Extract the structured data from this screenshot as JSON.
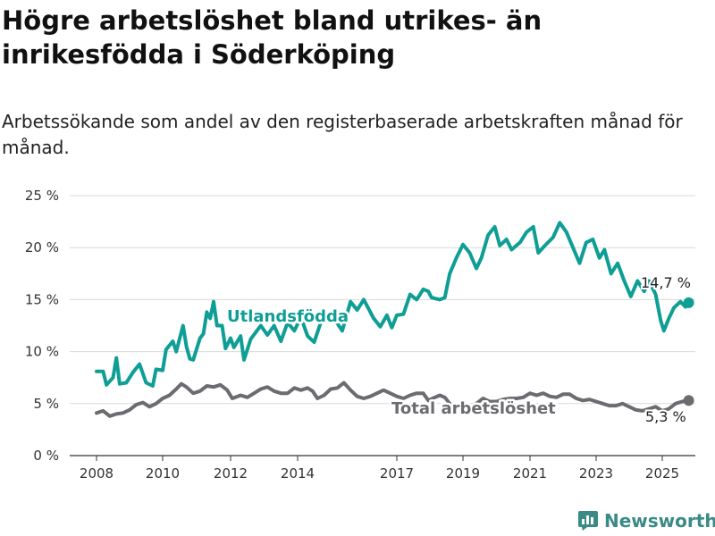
{
  "title": "Högre arbetslöshet bland utrikes- än inrikesfödda i Söderköping",
  "subtitle": "Arbetssökande som andel av den registerbaserade arbetskraften månad för månad.",
  "brand": {
    "name": "Newsworthy",
    "icon": "newsworthy-logo-icon"
  },
  "colors": {
    "foreign_born": "#0e9e95",
    "total": "#6b6b70",
    "grid": "#d9d9d9",
    "axis": "#333333"
  },
  "chart_data": {
    "type": "line",
    "title": "Högre arbetslöshet bland utrikes- än inrikesfödda i Söderköping",
    "subtitle": "Arbetssökande som andel av den registerbaserade arbetskraften månad för månad.",
    "xlabel": "",
    "ylabel": "",
    "ylim": [
      0,
      25
    ],
    "yticks": [
      0,
      5,
      10,
      15,
      20,
      25
    ],
    "ytick_labels": [
      "0 %",
      "5 %",
      "10 %",
      "15 %",
      "20 %",
      "25 %"
    ],
    "xlim": [
      2007.8,
      2025.9
    ],
    "xticks": [
      2008,
      2010,
      2012,
      2014,
      2017,
      2019,
      2021,
      2023,
      2025
    ],
    "xtick_labels": [
      "2008",
      "2010",
      "2012",
      "2014",
      "2017",
      "2019",
      "2021",
      "2023",
      "2025"
    ],
    "grid": true,
    "legend": "inline labels",
    "series": [
      {
        "name": "Utlandsfödda",
        "label_position": "middle-left",
        "end_label": "14,7 %",
        "points": [
          [
            2008.0,
            8.1
          ],
          [
            2008.2,
            8.1
          ],
          [
            2008.3,
            6.8
          ],
          [
            2008.5,
            7.5
          ],
          [
            2008.6,
            9.4
          ],
          [
            2008.7,
            6.9
          ],
          [
            2008.9,
            7.0
          ],
          [
            2009.1,
            8.0
          ],
          [
            2009.3,
            8.8
          ],
          [
            2009.5,
            7.0
          ],
          [
            2009.7,
            6.7
          ],
          [
            2009.8,
            8.3
          ],
          [
            2010.0,
            8.2
          ],
          [
            2010.1,
            10.2
          ],
          [
            2010.3,
            11.0
          ],
          [
            2010.4,
            10.0
          ],
          [
            2010.6,
            12.5
          ],
          [
            2010.7,
            10.5
          ],
          [
            2010.8,
            9.3
          ],
          [
            2010.9,
            9.2
          ],
          [
            2011.1,
            11.3
          ],
          [
            2011.2,
            11.7
          ],
          [
            2011.3,
            13.8
          ],
          [
            2011.4,
            13.2
          ],
          [
            2011.5,
            14.8
          ],
          [
            2011.6,
            12.5
          ],
          [
            2011.75,
            12.5
          ],
          [
            2011.85,
            10.3
          ],
          [
            2012.0,
            11.3
          ],
          [
            2012.1,
            10.4
          ],
          [
            2012.3,
            11.5
          ],
          [
            2012.4,
            9.2
          ],
          [
            2012.6,
            11.2
          ],
          [
            2012.9,
            12.5
          ],
          [
            2013.1,
            11.6
          ],
          [
            2013.3,
            12.5
          ],
          [
            2013.5,
            11.0
          ],
          [
            2013.7,
            12.8
          ],
          [
            2013.9,
            12.0
          ],
          [
            2014.1,
            13.3
          ],
          [
            2014.3,
            11.5
          ],
          [
            2014.5,
            10.9
          ],
          [
            2014.7,
            12.8
          ],
          [
            2014.9,
            13.0
          ],
          [
            2015.1,
            13.2
          ],
          [
            2015.35,
            12.0
          ],
          [
            2015.6,
            14.8
          ],
          [
            2015.8,
            14.0
          ],
          [
            2016.0,
            15.0
          ],
          [
            2016.3,
            13.2
          ],
          [
            2016.5,
            12.4
          ],
          [
            2016.7,
            13.5
          ],
          [
            2016.85,
            12.3
          ],
          [
            2017.0,
            13.5
          ],
          [
            2017.2,
            13.6
          ],
          [
            2017.4,
            15.5
          ],
          [
            2017.6,
            15.0
          ],
          [
            2017.8,
            16.0
          ],
          [
            2017.95,
            15.8
          ],
          [
            2018.05,
            15.2
          ],
          [
            2018.3,
            15.0
          ],
          [
            2018.45,
            15.2
          ],
          [
            2018.6,
            17.5
          ],
          [
            2018.8,
            19.0
          ],
          [
            2019.0,
            20.3
          ],
          [
            2019.2,
            19.5
          ],
          [
            2019.4,
            18.0
          ],
          [
            2019.55,
            19.0
          ],
          [
            2019.75,
            21.2
          ],
          [
            2019.95,
            22.0
          ],
          [
            2020.1,
            20.2
          ],
          [
            2020.3,
            20.8
          ],
          [
            2020.45,
            19.8
          ],
          [
            2020.7,
            20.5
          ],
          [
            2020.9,
            21.5
          ],
          [
            2021.1,
            22.0
          ],
          [
            2021.25,
            19.5
          ],
          [
            2021.45,
            20.2
          ],
          [
            2021.7,
            21.0
          ],
          [
            2021.9,
            22.4
          ],
          [
            2022.1,
            21.5
          ],
          [
            2022.3,
            20.0
          ],
          [
            2022.5,
            18.5
          ],
          [
            2022.7,
            20.5
          ],
          [
            2022.9,
            20.8
          ],
          [
            2023.1,
            19.0
          ],
          [
            2023.25,
            19.8
          ],
          [
            2023.45,
            17.5
          ],
          [
            2023.65,
            18.5
          ],
          [
            2023.85,
            16.8
          ],
          [
            2024.05,
            15.3
          ],
          [
            2024.25,
            16.8
          ],
          [
            2024.45,
            15.8
          ],
          [
            2024.6,
            16.8
          ],
          [
            2024.8,
            15.5
          ],
          [
            2024.95,
            13.0
          ],
          [
            2025.05,
            12.0
          ],
          [
            2025.2,
            13.2
          ],
          [
            2025.35,
            14.2
          ],
          [
            2025.55,
            14.8
          ],
          [
            2025.7,
            14.3
          ],
          [
            2025.8,
            14.7
          ]
        ]
      },
      {
        "name": "Total arbetslöshet",
        "label_position": "middle-right",
        "end_label": "5,3 %",
        "points": [
          [
            2008.0,
            4.1
          ],
          [
            2008.2,
            4.3
          ],
          [
            2008.4,
            3.8
          ],
          [
            2008.6,
            4.0
          ],
          [
            2008.8,
            4.1
          ],
          [
            2009.0,
            4.4
          ],
          [
            2009.2,
            4.9
          ],
          [
            2009.4,
            5.1
          ],
          [
            2009.6,
            4.7
          ],
          [
            2009.8,
            5.0
          ],
          [
            2010.0,
            5.5
          ],
          [
            2010.2,
            5.8
          ],
          [
            2010.4,
            6.4
          ],
          [
            2010.55,
            6.9
          ],
          [
            2010.7,
            6.6
          ],
          [
            2010.9,
            6.0
          ],
          [
            2011.1,
            6.2
          ],
          [
            2011.3,
            6.7
          ],
          [
            2011.5,
            6.6
          ],
          [
            2011.7,
            6.8
          ],
          [
            2011.9,
            6.3
          ],
          [
            2012.05,
            5.5
          ],
          [
            2012.3,
            5.8
          ],
          [
            2012.5,
            5.6
          ],
          [
            2012.7,
            6.0
          ],
          [
            2012.9,
            6.4
          ],
          [
            2013.1,
            6.6
          ],
          [
            2013.3,
            6.2
          ],
          [
            2013.5,
            6.0
          ],
          [
            2013.7,
            6.0
          ],
          [
            2013.9,
            6.5
          ],
          [
            2014.1,
            6.3
          ],
          [
            2014.3,
            6.5
          ],
          [
            2014.45,
            6.2
          ],
          [
            2014.6,
            5.5
          ],
          [
            2014.8,
            5.8
          ],
          [
            2015.0,
            6.4
          ],
          [
            2015.2,
            6.5
          ],
          [
            2015.4,
            7.0
          ],
          [
            2015.6,
            6.3
          ],
          [
            2015.8,
            5.7
          ],
          [
            2016.0,
            5.5
          ],
          [
            2016.2,
            5.7
          ],
          [
            2016.4,
            6.0
          ],
          [
            2016.6,
            6.3
          ],
          [
            2016.8,
            6.0
          ],
          [
            2017.0,
            5.7
          ],
          [
            2017.2,
            5.5
          ],
          [
            2017.4,
            5.8
          ],
          [
            2017.6,
            6.0
          ],
          [
            2017.8,
            6.0
          ],
          [
            2017.95,
            5.3
          ],
          [
            2018.15,
            5.6
          ],
          [
            2018.3,
            5.8
          ],
          [
            2018.45,
            5.6
          ],
          [
            2018.6,
            5.0
          ],
          [
            2018.75,
            4.4
          ],
          [
            2018.9,
            4.7
          ],
          [
            2019.05,
            4.4
          ],
          [
            2019.2,
            4.6
          ],
          [
            2019.4,
            5.0
          ],
          [
            2019.6,
            5.5
          ],
          [
            2019.8,
            5.2
          ],
          [
            2020.0,
            5.2
          ],
          [
            2020.2,
            5.4
          ],
          [
            2020.4,
            5.5
          ],
          [
            2020.6,
            5.5
          ],
          [
            2020.8,
            5.6
          ],
          [
            2021.0,
            6.0
          ],
          [
            2021.2,
            5.8
          ],
          [
            2021.4,
            6.0
          ],
          [
            2021.6,
            5.7
          ],
          [
            2021.8,
            5.6
          ],
          [
            2022.0,
            5.9
          ],
          [
            2022.2,
            5.9
          ],
          [
            2022.4,
            5.5
          ],
          [
            2022.6,
            5.3
          ],
          [
            2022.8,
            5.4
          ],
          [
            2023.0,
            5.2
          ],
          [
            2023.2,
            5.0
          ],
          [
            2023.4,
            4.8
          ],
          [
            2023.6,
            4.8
          ],
          [
            2023.8,
            5.0
          ],
          [
            2024.0,
            4.7
          ],
          [
            2024.2,
            4.4
          ],
          [
            2024.4,
            4.3
          ],
          [
            2024.6,
            4.5
          ],
          [
            2024.8,
            4.7
          ],
          [
            2025.0,
            4.3
          ],
          [
            2025.2,
            4.5
          ],
          [
            2025.4,
            5.0
          ],
          [
            2025.6,
            5.2
          ],
          [
            2025.8,
            5.3
          ]
        ]
      }
    ]
  }
}
